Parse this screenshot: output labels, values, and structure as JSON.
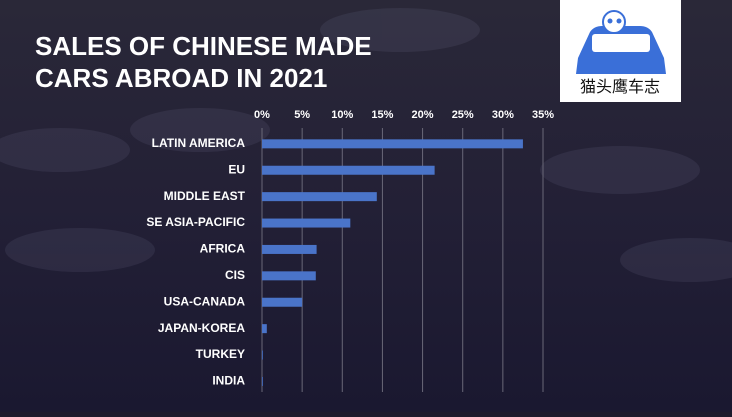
{
  "chart_data": {
    "type": "barh",
    "title": [
      "SALES OF CHINESE MADE",
      "CARS ABROAD IN 2021"
    ],
    "categories": [
      "LATIN AMERICA",
      "EU",
      "MIDDLE EAST",
      "SE ASIA-PACIFIC",
      "AFRICA",
      "CIS",
      "USA-CANADA",
      "JAPAN-KOREA",
      "TURKEY",
      "INDIA"
    ],
    "values": [
      32.5,
      21.5,
      14.3,
      11.0,
      6.8,
      6.7,
      5.0,
      0.6,
      0.1,
      0.1
    ],
    "color": "#4a74c9",
    "xlim": [
      0,
      35
    ],
    "xticks": [
      {
        "value": 0,
        "label": "0%"
      },
      {
        "value": 5,
        "label": "5%"
      },
      {
        "value": 10,
        "label": "10%"
      },
      {
        "value": 15,
        "label": "15%"
      },
      {
        "value": 20,
        "label": "20%"
      },
      {
        "value": 25,
        "label": "25%"
      },
      {
        "value": 30,
        "label": "30%"
      },
      {
        "value": 35,
        "label": "35%"
      }
    ],
    "grid": true
  },
  "logo": {
    "text": "猫头鹰车志"
  }
}
